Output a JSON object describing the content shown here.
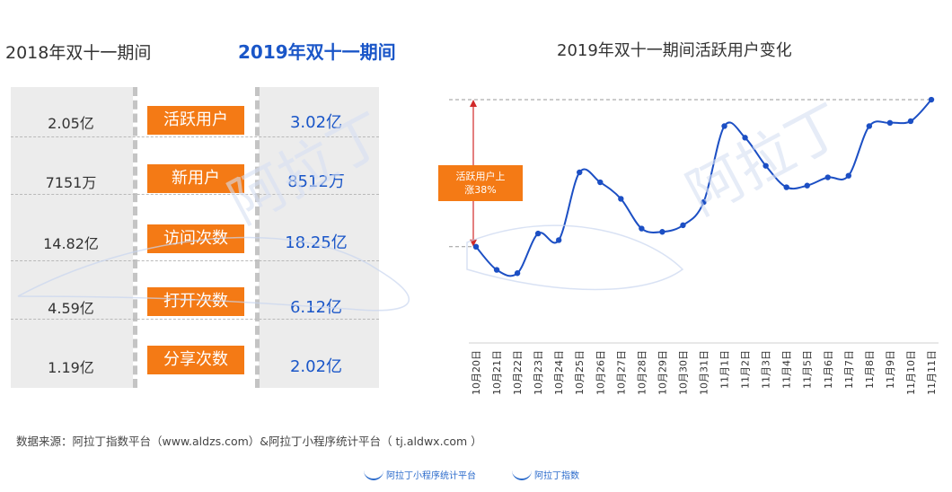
{
  "left": {
    "title_2018": "2018年双十一期间",
    "title_2019": "2019年双十一期间",
    "rows": [
      {
        "metric": "活跃用户",
        "v2018": "2.05亿",
        "v2019": "3.02亿"
      },
      {
        "metric": "新用户",
        "v2018": "7151万",
        "v2019": "8512万"
      },
      {
        "metric": "访问次数",
        "v2018": "14.82亿",
        "v2019": "18.25亿"
      },
      {
        "metric": "打开次数",
        "v2018": "4.59亿",
        "v2019": "6.12亿"
      },
      {
        "metric": "分享次数",
        "v2018": "1.19亿",
        "v2019": "2.02亿"
      }
    ]
  },
  "chart_data": {
    "type": "line",
    "title": "2019年双十一期间活跃用户变化",
    "categories": [
      "10月20日",
      "10月21日",
      "10月22日",
      "10月23日",
      "10月24日",
      "10月25日",
      "10月26日",
      "10月27日",
      "10月28日",
      "10月29日",
      "10月30日",
      "10月31日",
      "11月1日",
      "11月2日",
      "11月3日",
      "11月4日",
      "11月5日",
      "11月6日",
      "11月7日",
      "11月8日",
      "11月9日",
      "11月10日",
      "11月11日"
    ],
    "values": [
      100,
      86,
      84,
      108,
      104,
      145,
      139,
      129,
      111,
      109,
      113,
      127,
      173,
      166,
      149,
      136,
      137,
      142,
      143,
      173,
      175,
      176,
      189
    ],
    "ylim": [
      70,
      195
    ],
    "grid": false,
    "color": "#1c4fc4",
    "annotation": {
      "text": "活跃用户上涨38%",
      "color": "#f47a15"
    },
    "annotation_arrow_color": "#d12a2a"
  },
  "footer": {
    "source": "数据来源：阿拉丁指数平台（www.aldzs.com）&阿拉丁小程序统计平台（ tj.aldwx.com ）",
    "logo1": "阿拉丁小程序统计平台",
    "logo2": "阿拉丁指数"
  },
  "watermark": "阿拉丁"
}
